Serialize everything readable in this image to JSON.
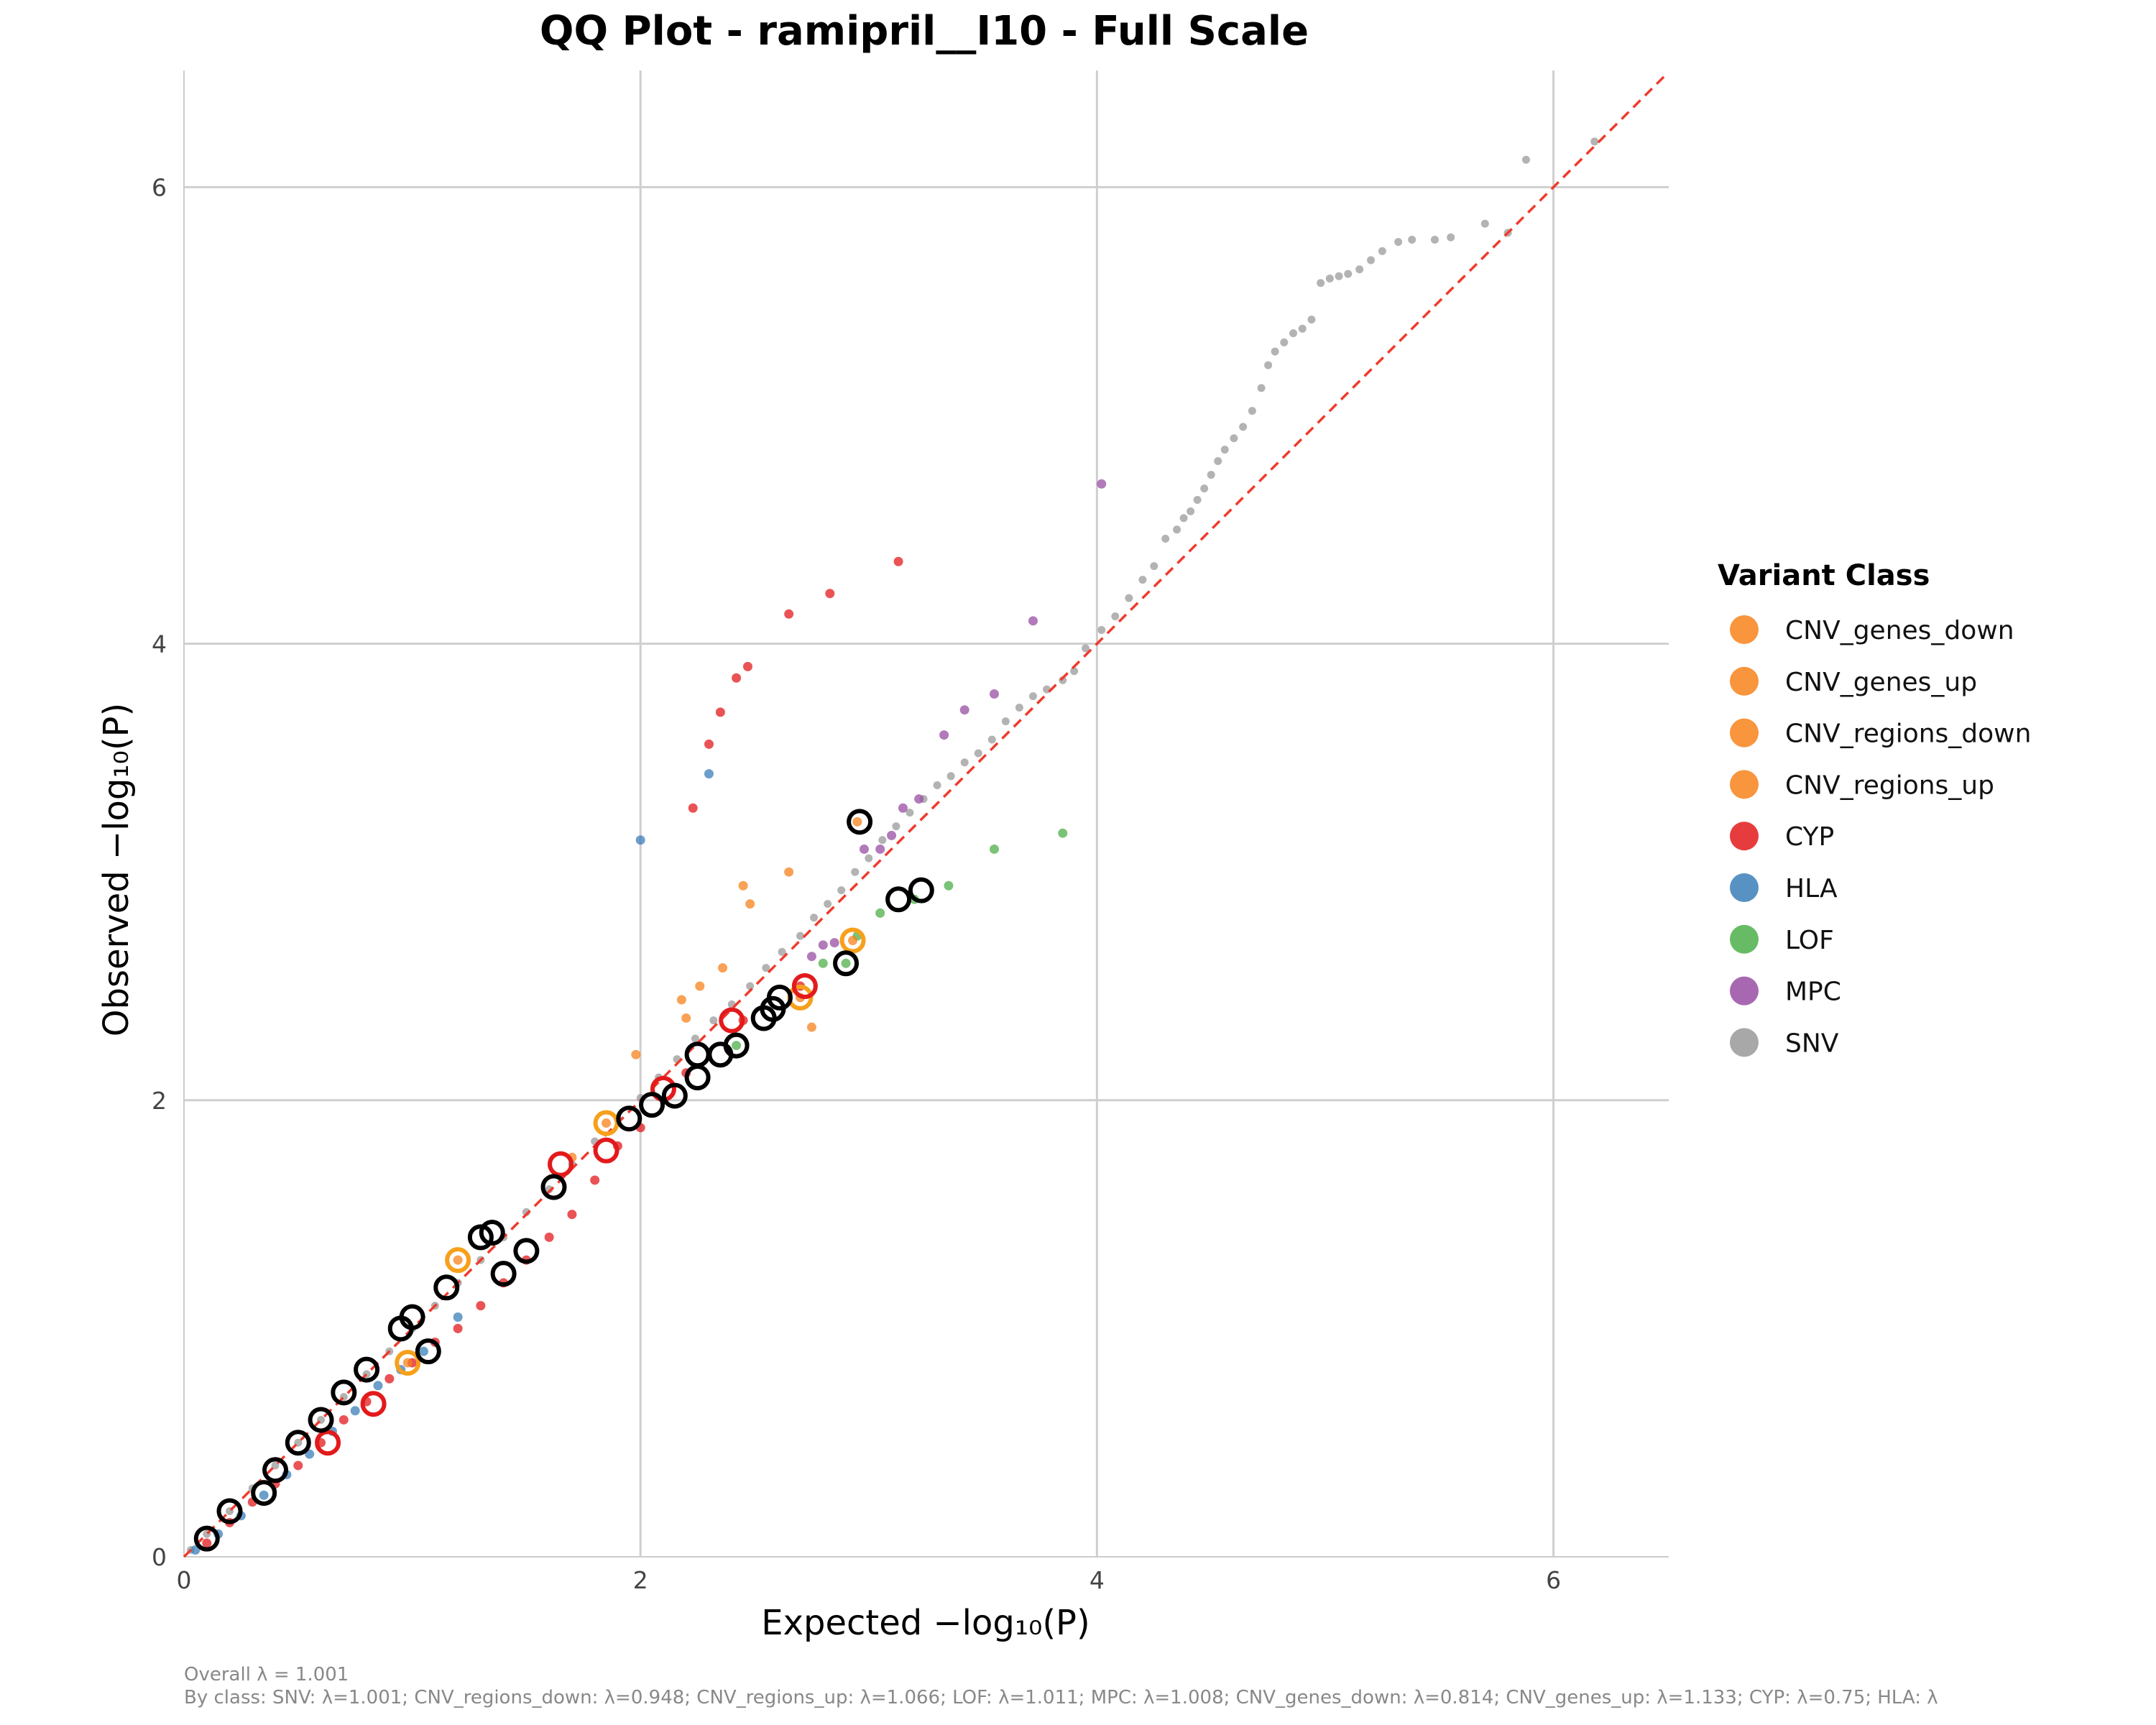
{
  "chart_data": {
    "type": "scatter",
    "title": "QQ Plot - ramipril__I10 - Full Scale",
    "xlabel": "Expected −log₁₀(P)",
    "ylabel": "Observed −log₁₀(P)",
    "xlim": [
      0,
      6.5
    ],
    "ylim": [
      0,
      6.5
    ],
    "xticks": [
      "0",
      "2",
      "4",
      "6"
    ],
    "yticks": [
      "0",
      "2",
      "4",
      "6"
    ],
    "grid": true,
    "reference_line": "y = x",
    "legend_title": "Variant Class",
    "legend_position": "right",
    "legend": [
      {
        "name": "CNV_genes_down",
        "color": "#f7821b"
      },
      {
        "name": "CNV_genes_up",
        "color": "#f7821b"
      },
      {
        "name": "CNV_regions_down",
        "color": "#f7821b"
      },
      {
        "name": "CNV_regions_up",
        "color": "#f7821b"
      },
      {
        "name": "CYP",
        "color": "#e31a1c"
      },
      {
        "name": "HLA",
        "color": "#3b7fb8"
      },
      {
        "name": "LOF",
        "color": "#4daf4a"
      },
      {
        "name": "MPC",
        "color": "#984ea3"
      },
      {
        "name": "SNV",
        "color": "#999999"
      }
    ],
    "series": [
      {
        "name": "SNV",
        "color": "#999999",
        "points": [
          [
            5.88,
            6.12
          ],
          [
            6.18,
            6.2
          ],
          [
            5.8,
            5.8
          ],
          [
            5.7,
            5.84
          ],
          [
            5.55,
            5.78
          ],
          [
            5.48,
            5.77
          ],
          [
            5.38,
            5.77
          ],
          [
            5.32,
            5.76
          ],
          [
            5.25,
            5.72
          ],
          [
            5.2,
            5.68
          ],
          [
            5.15,
            5.64
          ],
          [
            5.1,
            5.62
          ],
          [
            5.06,
            5.61
          ],
          [
            5.02,
            5.6
          ],
          [
            4.98,
            5.58
          ],
          [
            4.94,
            5.42
          ],
          [
            4.9,
            5.38
          ],
          [
            4.86,
            5.36
          ],
          [
            4.82,
            5.32
          ],
          [
            4.78,
            5.28
          ],
          [
            4.75,
            5.22
          ],
          [
            4.72,
            5.12
          ],
          [
            4.68,
            5.02
          ],
          [
            4.64,
            4.95
          ],
          [
            4.6,
            4.9
          ],
          [
            4.56,
            4.85
          ],
          [
            4.53,
            4.8
          ],
          [
            4.5,
            4.74
          ],
          [
            4.47,
            4.68
          ],
          [
            4.44,
            4.63
          ],
          [
            4.41,
            4.58
          ],
          [
            4.38,
            4.55
          ],
          [
            4.35,
            4.5
          ],
          [
            4.3,
            4.46
          ],
          [
            4.25,
            4.34
          ],
          [
            4.2,
            4.28
          ],
          [
            4.14,
            4.2
          ],
          [
            4.08,
            4.12
          ],
          [
            4.02,
            4.06
          ],
          [
            3.95,
            3.98
          ],
          [
            3.9,
            3.88
          ],
          [
            3.85,
            3.84
          ],
          [
            3.78,
            3.8
          ],
          [
            3.72,
            3.77
          ],
          [
            3.66,
            3.72
          ],
          [
            3.6,
            3.66
          ],
          [
            3.54,
            3.58
          ],
          [
            3.48,
            3.52
          ],
          [
            3.42,
            3.48
          ],
          [
            3.36,
            3.42
          ],
          [
            3.3,
            3.38
          ],
          [
            3.24,
            3.32
          ],
          [
            3.18,
            3.26
          ],
          [
            3.12,
            3.2
          ],
          [
            3.06,
            3.14
          ],
          [
            3.0,
            3.06
          ],
          [
            2.94,
            3.0
          ],
          [
            2.88,
            2.92
          ],
          [
            2.82,
            2.86
          ],
          [
            2.76,
            2.8
          ],
          [
            2.7,
            2.72
          ],
          [
            2.62,
            2.65
          ],
          [
            2.55,
            2.58
          ],
          [
            2.48,
            2.5
          ],
          [
            2.4,
            2.42
          ],
          [
            2.32,
            2.35
          ],
          [
            2.24,
            2.27
          ],
          [
            2.16,
            2.18
          ],
          [
            2.08,
            2.1
          ],
          [
            2.0,
            2.01
          ],
          [
            1.9,
            1.92
          ],
          [
            1.8,
            1.82
          ],
          [
            1.7,
            1.72
          ],
          [
            1.6,
            1.61
          ],
          [
            1.5,
            1.51
          ],
          [
            1.4,
            1.4
          ],
          [
            1.3,
            1.3
          ],
          [
            1.2,
            1.2
          ],
          [
            1.1,
            1.1
          ],
          [
            1.0,
            1.0
          ],
          [
            0.9,
            0.9
          ],
          [
            0.8,
            0.8
          ],
          [
            0.7,
            0.7
          ],
          [
            0.6,
            0.6
          ],
          [
            0.5,
            0.5
          ],
          [
            0.4,
            0.4
          ],
          [
            0.3,
            0.3
          ],
          [
            0.2,
            0.2
          ],
          [
            0.1,
            0.1
          ],
          [
            0.03,
            0.03
          ]
        ]
      },
      {
        "name": "CYP",
        "color": "#e31a1c",
        "points": [
          [
            3.13,
            4.36
          ],
          [
            2.83,
            4.22
          ],
          [
            2.65,
            4.13
          ],
          [
            2.47,
            3.9
          ],
          [
            2.42,
            3.85
          ],
          [
            2.35,
            3.7
          ],
          [
            2.3,
            3.56
          ],
          [
            2.23,
            3.28
          ],
          [
            2.7,
            2.5
          ],
          [
            2.45,
            2.35
          ],
          [
            2.2,
            2.12
          ],
          [
            2.0,
            1.88
          ],
          [
            1.9,
            1.8
          ],
          [
            1.8,
            1.65
          ],
          [
            1.7,
            1.5
          ],
          [
            1.6,
            1.4
          ],
          [
            1.5,
            1.3
          ],
          [
            1.4,
            1.2
          ],
          [
            1.3,
            1.1
          ],
          [
            1.2,
            1.0
          ],
          [
            1.1,
            0.94
          ],
          [
            1.0,
            0.85
          ],
          [
            0.9,
            0.78
          ],
          [
            0.8,
            0.68
          ],
          [
            0.7,
            0.6
          ],
          [
            0.6,
            0.5
          ],
          [
            0.5,
            0.4
          ],
          [
            0.4,
            0.32
          ],
          [
            0.3,
            0.24
          ],
          [
            0.2,
            0.15
          ],
          [
            0.1,
            0.06
          ]
        ]
      },
      {
        "name": "HLA",
        "color": "#3b7fb8",
        "points": [
          [
            2.0,
            3.14
          ],
          [
            2.3,
            3.43
          ],
          [
            1.2,
            1.05
          ],
          [
            1.05,
            0.9
          ],
          [
            0.95,
            0.82
          ],
          [
            0.85,
            0.75
          ],
          [
            0.75,
            0.64
          ],
          [
            0.65,
            0.55
          ],
          [
            0.55,
            0.45
          ],
          [
            0.45,
            0.36
          ],
          [
            0.35,
            0.27
          ],
          [
            0.25,
            0.18
          ],
          [
            0.15,
            0.1
          ],
          [
            0.05,
            0.03
          ]
        ]
      },
      {
        "name": "LOF",
        "color": "#4daf4a",
        "points": [
          [
            3.85,
            3.17
          ],
          [
            3.55,
            3.1
          ],
          [
            3.35,
            2.94
          ],
          [
            3.2,
            2.88
          ],
          [
            3.05,
            2.82
          ],
          [
            2.95,
            2.72
          ],
          [
            2.9,
            2.6
          ],
          [
            2.8,
            2.6
          ],
          [
            2.42,
            2.24
          ]
        ]
      },
      {
        "name": "MPC",
        "color": "#984ea3",
        "points": [
          [
            4.02,
            4.7
          ],
          [
            3.72,
            4.1
          ],
          [
            3.55,
            3.78
          ],
          [
            3.42,
            3.71
          ],
          [
            3.33,
            3.6
          ],
          [
            3.22,
            3.32
          ],
          [
            3.15,
            3.28
          ],
          [
            3.1,
            3.16
          ],
          [
            3.05,
            3.1
          ],
          [
            2.98,
            3.1
          ],
          [
            2.85,
            2.69
          ],
          [
            2.8,
            2.68
          ],
          [
            2.75,
            2.63
          ]
        ]
      },
      {
        "name": "CNV",
        "color": "#f7821b",
        "points": [
          [
            2.95,
            3.22
          ],
          [
            2.65,
            3.0
          ],
          [
            2.45,
            2.94
          ],
          [
            2.48,
            2.86
          ],
          [
            2.36,
            2.58
          ],
          [
            2.26,
            2.5
          ],
          [
            2.18,
            2.44
          ],
          [
            2.2,
            2.36
          ],
          [
            2.75,
            2.32
          ],
          [
            1.98,
            2.2
          ],
          [
            2.93,
            2.7
          ],
          [
            2.7,
            2.45
          ],
          [
            1.85,
            1.9
          ],
          [
            1.7,
            1.75
          ],
          [
            1.2,
            1.3
          ],
          [
            0.98,
            0.85
          ]
        ]
      }
    ],
    "highlighted_points": [
      [
        2.96,
        3.22
      ],
      [
        3.23,
        2.92
      ],
      [
        3.13,
        2.88
      ],
      [
        2.9,
        2.6
      ],
      [
        2.61,
        2.45
      ],
      [
        2.58,
        2.4
      ],
      [
        2.54,
        2.36
      ],
      [
        2.42,
        2.24
      ],
      [
        2.35,
        2.2
      ],
      [
        2.25,
        2.2
      ],
      [
        2.25,
        2.1
      ],
      [
        2.15,
        2.02
      ],
      [
        2.05,
        1.98
      ],
      [
        1.95,
        1.92
      ],
      [
        1.62,
        1.62
      ],
      [
        1.5,
        1.34
      ],
      [
        1.4,
        1.24
      ],
      [
        1.35,
        1.42
      ],
      [
        1.3,
        1.4
      ],
      [
        1.15,
        1.18
      ],
      [
        1.07,
        0.9
      ],
      [
        1.0,
        1.05
      ],
      [
        0.95,
        1.0
      ],
      [
        0.8,
        0.82
      ],
      [
        0.7,
        0.72
      ],
      [
        0.6,
        0.6
      ],
      [
        0.5,
        0.5
      ],
      [
        0.4,
        0.38
      ],
      [
        0.35,
        0.28
      ],
      [
        0.2,
        0.2
      ],
      [
        0.1,
        0.08
      ]
    ],
    "ring_points": [
      {
        "color": "#f7a01b",
        "points": [
          [
            2.93,
            2.7
          ],
          [
            1.85,
            1.9
          ],
          [
            1.2,
            1.3
          ],
          [
            0.98,
            0.85
          ],
          [
            2.7,
            2.45
          ]
        ]
      },
      {
        "color": "#e31a1c",
        "points": [
          [
            1.65,
            1.72
          ],
          [
            1.85,
            1.78
          ],
          [
            2.4,
            2.35
          ],
          [
            2.72,
            2.5
          ],
          [
            0.83,
            0.67
          ],
          [
            0.63,
            0.5
          ],
          [
            2.1,
            2.05
          ]
        ]
      },
      {
        "color": "#4daf4a",
        "points": [
          [
            2.42,
            2.24
          ]
        ]
      }
    ],
    "annotations": [
      "Overall λ = 1.001",
      "By class: SNV: λ=1.001; CNV_regions_down: λ=0.948; CNV_regions_up: λ=1.066; LOF: λ=1.011; MPC: λ=1.008; CNV_genes_down: λ=0.814; CNV_genes_up: λ=1.133; CYP: λ=0.75; HLA: λ"
    ]
  }
}
